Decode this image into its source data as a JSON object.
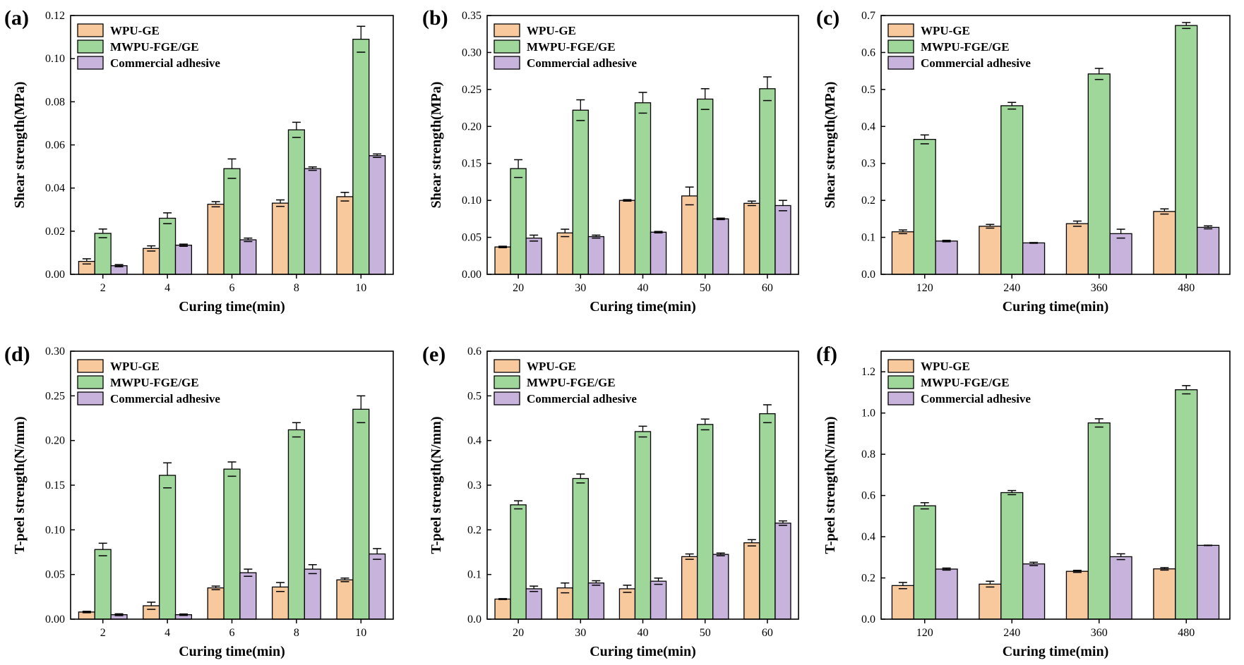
{
  "series_colors": {
    "WPU-GE": "#f9c99e",
    "MWPU-FGE/GE": "#9fd69a",
    "Commercial adhesive": "#c7b3dc"
  },
  "chart_data": [
    {
      "panel": "(a)",
      "type": "bar",
      "xlabel": "Curing time(min)",
      "ylabel": "Shear strength(MPa)",
      "ylim": [
        0,
        0.12
      ],
      "yticks": [
        0.0,
        0.02,
        0.04,
        0.06,
        0.08,
        0.1,
        0.12
      ],
      "ytick_decimals": 2,
      "categories": [
        "2",
        "4",
        "6",
        "8",
        "10"
      ],
      "legend": "top-left",
      "series": [
        {
          "name": "WPU-GE",
          "values": [
            0.006,
            0.012,
            0.0325,
            0.033,
            0.036
          ],
          "errors": [
            0.0012,
            0.0012,
            0.0012,
            0.0015,
            0.002
          ]
        },
        {
          "name": "MWPU-FGE/GE",
          "values": [
            0.019,
            0.026,
            0.049,
            0.067,
            0.109
          ],
          "errors": [
            0.002,
            0.0025,
            0.0045,
            0.0035,
            0.006
          ]
        },
        {
          "name": "Commercial adhesive",
          "values": [
            0.004,
            0.0135,
            0.016,
            0.049,
            0.055
          ],
          "errors": [
            0.0005,
            0.0005,
            0.0008,
            0.0008,
            0.0008
          ]
        }
      ]
    },
    {
      "panel": "(b)",
      "type": "bar",
      "xlabel": "Curing time(min)",
      "ylabel": "Shear strength(MPa)",
      "ylim": [
        0,
        0.35
      ],
      "yticks": [
        0.0,
        0.05,
        0.1,
        0.15,
        0.2,
        0.25,
        0.3,
        0.35
      ],
      "ytick_decimals": 2,
      "categories": [
        "20",
        "30",
        "40",
        "50",
        "60"
      ],
      "legend": "top-left",
      "series": [
        {
          "name": "WPU-GE",
          "values": [
            0.037,
            0.056,
            0.1,
            0.106,
            0.096
          ],
          "errors": [
            0.001,
            0.005,
            0.001,
            0.012,
            0.003
          ]
        },
        {
          "name": "MWPU-FGE/GE",
          "values": [
            0.143,
            0.222,
            0.232,
            0.237,
            0.251
          ],
          "errors": [
            0.012,
            0.014,
            0.014,
            0.014,
            0.016
          ]
        },
        {
          "name": "Commercial adhesive",
          "values": [
            0.049,
            0.051,
            0.057,
            0.075,
            0.093
          ],
          "errors": [
            0.004,
            0.002,
            0.001,
            0.001,
            0.007
          ]
        }
      ]
    },
    {
      "panel": "(c)",
      "type": "bar",
      "xlabel": "Curing time(min)",
      "ylabel": "Shear strength(MPa)",
      "ylim": [
        0,
        0.7
      ],
      "yticks": [
        0.0,
        0.1,
        0.2,
        0.3,
        0.4,
        0.5,
        0.6,
        0.7
      ],
      "ytick_decimals": 1,
      "categories": [
        "120",
        "240",
        "360",
        "480"
      ],
      "legend": "top-left",
      "series": [
        {
          "name": "WPU-GE",
          "values": [
            0.115,
            0.13,
            0.137,
            0.17
          ],
          "errors": [
            0.005,
            0.005,
            0.007,
            0.007
          ]
        },
        {
          "name": "MWPU-FGE/GE",
          "values": [
            0.365,
            0.456,
            0.542,
            0.673
          ],
          "errors": [
            0.012,
            0.009,
            0.015,
            0.008
          ]
        },
        {
          "name": "Commercial adhesive",
          "values": [
            0.09,
            0.085,
            0.11,
            0.127
          ],
          "errors": [
            0.002,
            0.001,
            0.012,
            0.004
          ]
        }
      ]
    },
    {
      "panel": "(d)",
      "type": "bar",
      "xlabel": "Curing time(min)",
      "ylabel": "T-peel strength(N/mm)",
      "ylim": [
        0,
        0.3
      ],
      "yticks": [
        0.0,
        0.05,
        0.1,
        0.15,
        0.2,
        0.25,
        0.3
      ],
      "ytick_decimals": 2,
      "categories": [
        "2",
        "4",
        "6",
        "8",
        "10"
      ],
      "legend": "top-left",
      "series": [
        {
          "name": "WPU-GE",
          "values": [
            0.008,
            0.015,
            0.035,
            0.036,
            0.044
          ],
          "errors": [
            0.0008,
            0.004,
            0.002,
            0.005,
            0.002
          ]
        },
        {
          "name": "MWPU-FGE/GE",
          "values": [
            0.078,
            0.161,
            0.168,
            0.212,
            0.235
          ],
          "errors": [
            0.007,
            0.014,
            0.008,
            0.008,
            0.015
          ]
        },
        {
          "name": "Commercial adhesive",
          "values": [
            0.005,
            0.005,
            0.052,
            0.056,
            0.073
          ],
          "errors": [
            0.001,
            0.0008,
            0.004,
            0.005,
            0.006
          ]
        }
      ]
    },
    {
      "panel": "(e)",
      "type": "bar",
      "xlabel": "Curing time(min)",
      "ylabel": "T-peel strength(N/mm)",
      "ylim": [
        0,
        0.6
      ],
      "yticks": [
        0.0,
        0.1,
        0.2,
        0.3,
        0.4,
        0.5,
        0.6
      ],
      "ytick_decimals": 1,
      "categories": [
        "20",
        "30",
        "40",
        "50",
        "60"
      ],
      "legend": "top-left",
      "series": [
        {
          "name": "WPU-GE",
          "values": [
            0.045,
            0.07,
            0.068,
            0.14,
            0.171
          ],
          "errors": [
            0.001,
            0.011,
            0.008,
            0.006,
            0.007
          ]
        },
        {
          "name": "MWPU-FGE/GE",
          "values": [
            0.256,
            0.315,
            0.42,
            0.436,
            0.46
          ],
          "errors": [
            0.009,
            0.01,
            0.012,
            0.012,
            0.02
          ]
        },
        {
          "name": "Commercial adhesive",
          "values": [
            0.068,
            0.081,
            0.085,
            0.145,
            0.215
          ],
          "errors": [
            0.006,
            0.005,
            0.007,
            0.003,
            0.005
          ]
        }
      ]
    },
    {
      "panel": "(f)",
      "type": "bar",
      "xlabel": "Curing time(min)",
      "ylabel": "T-peel strength(N/mm)",
      "ylim": [
        0,
        1.3
      ],
      "yticks": [
        0.0,
        0.2,
        0.4,
        0.6,
        0.8,
        1.0,
        1.2
      ],
      "ytick_decimals": 1,
      "categories": [
        "120",
        "240",
        "360",
        "480"
      ],
      "legend": "top-left",
      "series": [
        {
          "name": "WPU-GE",
          "values": [
            0.163,
            0.17,
            0.232,
            0.244
          ],
          "errors": [
            0.015,
            0.014,
            0.005,
            0.006
          ]
        },
        {
          "name": "MWPU-FGE/GE",
          "values": [
            0.55,
            0.614,
            0.952,
            1.113
          ],
          "errors": [
            0.015,
            0.01,
            0.02,
            0.02
          ]
        },
        {
          "name": "Commercial adhesive",
          "values": [
            0.243,
            0.268,
            0.303,
            0.358
          ],
          "errors": [
            0.005,
            0.008,
            0.014,
            0.001
          ]
        }
      ]
    }
  ]
}
